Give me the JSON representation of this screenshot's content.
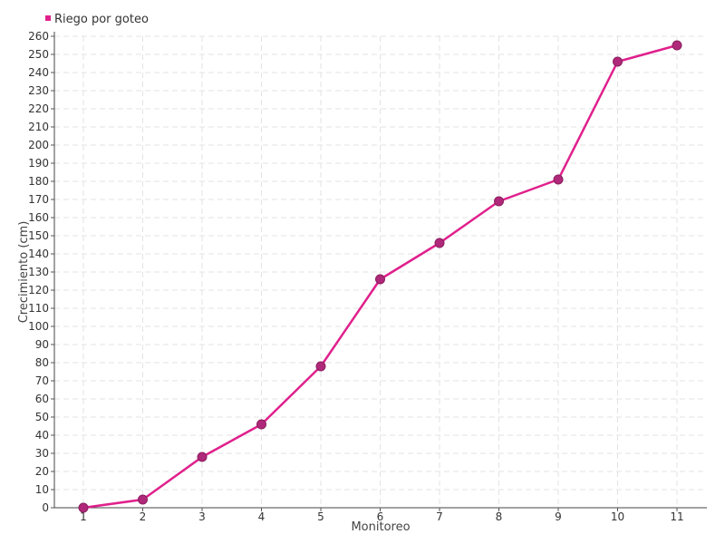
{
  "chart_data": {
    "type": "line",
    "title": "",
    "xlabel": "Monitoreo",
    "ylabel": "Crecimiento (cm)",
    "categories": [
      "1",
      "2",
      "3",
      "4",
      "5",
      "6",
      "7",
      "8",
      "9",
      "10",
      "11"
    ],
    "series": [
      {
        "name": "Riego por goteo",
        "values": [
          0,
          4.5,
          28,
          46,
          78,
          126,
          146,
          169,
          181,
          246,
          255
        ],
        "color": "#e0208c",
        "marker_color": "#b0287a"
      }
    ],
    "ylim": [
      0,
      260
    ],
    "ytick_step": 10,
    "grid": true,
    "legend_position": "top-left"
  }
}
